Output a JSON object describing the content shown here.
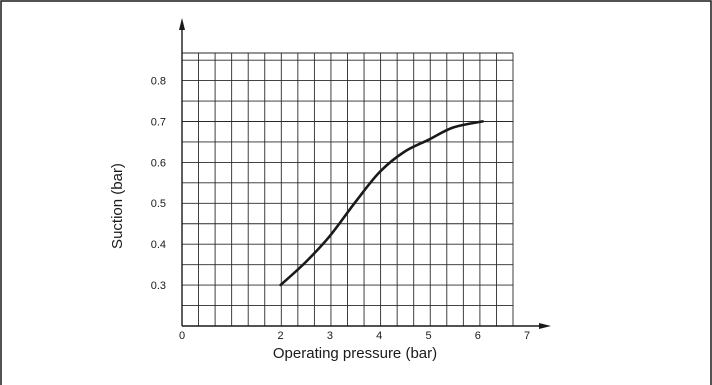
{
  "chart_data": {
    "type": "line",
    "title": "",
    "xlabel": "Operating pressure (bar)",
    "ylabel": "Suction (bar)",
    "xlim": [
      0,
      8
    ],
    "ylim": [
      0.2,
      0.9
    ],
    "x_ticks": [
      "0",
      "2",
      "3",
      "4",
      "5",
      "6",
      "7"
    ],
    "y_ticks": [
      "0.3",
      "0.4",
      "0.5",
      "0.6",
      "0.7",
      "0.8"
    ],
    "grid": true,
    "series": [
      {
        "values": [
          {
            "x": 2.0,
            "y": 0.3
          },
          {
            "x": 2.5,
            "y": 0.355
          },
          {
            "x": 3.0,
            "y": 0.42
          },
          {
            "x": 3.5,
            "y": 0.5
          },
          {
            "x": 4.0,
            "y": 0.575
          },
          {
            "x": 4.5,
            "y": 0.625
          },
          {
            "x": 5.0,
            "y": 0.655
          },
          {
            "x": 5.5,
            "y": 0.685
          },
          {
            "x": 6.1,
            "y": 0.7
          }
        ]
      }
    ],
    "colors": {
      "line": "#1a1a1a",
      "grid": "#2a2a2a",
      "axis": "#1a1a1a",
      "frame": "#1a1a1a"
    }
  }
}
